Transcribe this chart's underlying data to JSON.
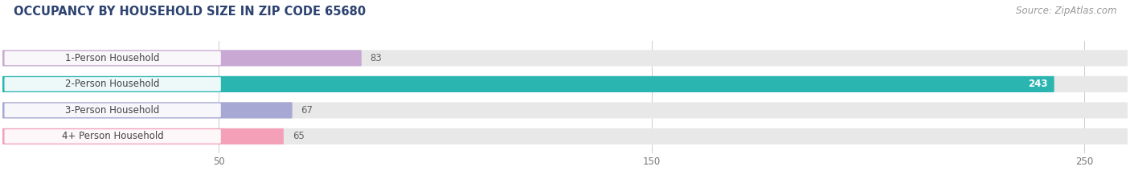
{
  "title": "OCCUPANCY BY HOUSEHOLD SIZE IN ZIP CODE 65680",
  "source": "Source: ZipAtlas.com",
  "categories": [
    "1-Person Household",
    "2-Person Household",
    "3-Person Household",
    "4+ Person Household"
  ],
  "values": [
    83,
    243,
    67,
    65
  ],
  "bar_colors": [
    "#c9a8d4",
    "#2ab5b0",
    "#a8a8d4",
    "#f4a0b8"
  ],
  "bar_bg_color": "#e8e8e8",
  "xlim": [
    0,
    260
  ],
  "xticks": [
    50,
    150,
    250
  ],
  "title_color": "#2c4270",
  "source_color": "#999999",
  "title_fontsize": 10.5,
  "source_fontsize": 8.5,
  "bar_height": 0.62,
  "figsize": [
    14.06,
    2.33
  ],
  "dpi": 100,
  "bar_rounding": 0.09,
  "label_bg_color": "#ffffff",
  "value_label_color": "#666666",
  "value_label_color_inside": "#ffffff",
  "category_fontsize": 8.5,
  "value_fontsize": 8.5,
  "grid_color": "#cccccc",
  "bar_gap": 1.0
}
